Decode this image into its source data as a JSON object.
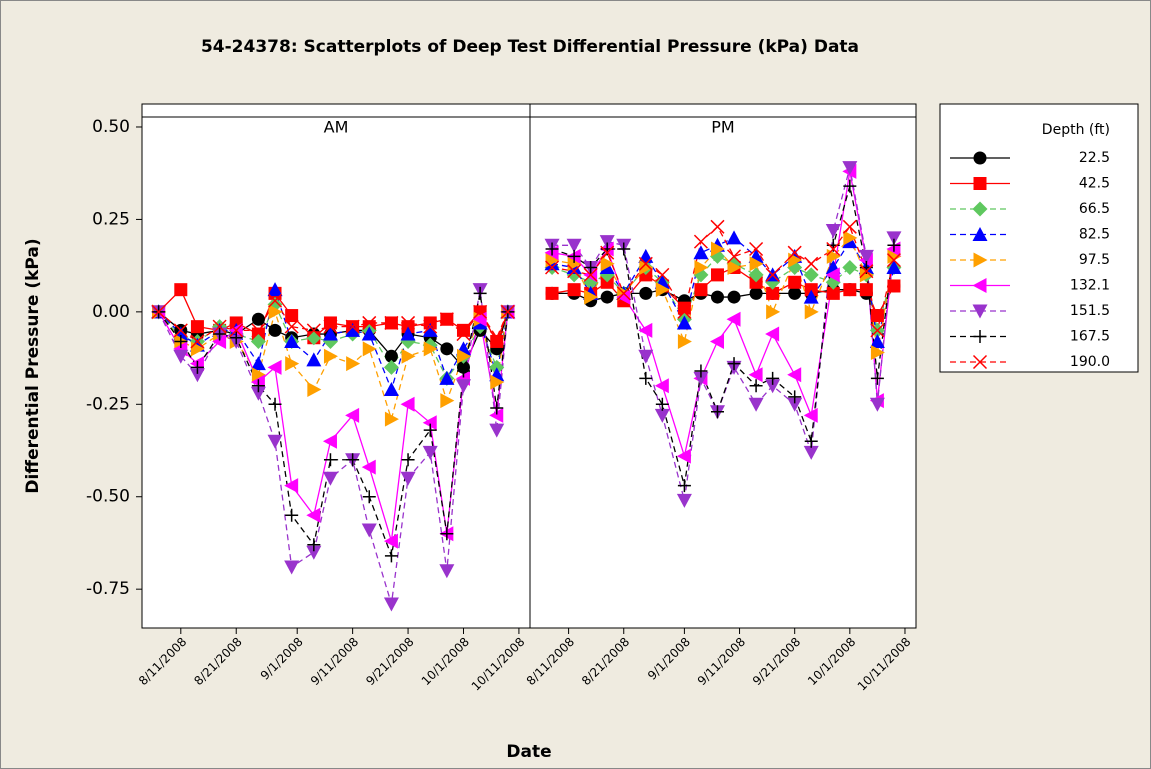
{
  "chart_data": {
    "type": "line",
    "title": "54-24378:  Scatterplots of Deep Test Differential Pressure (kPa) Data",
    "xlabel": "Date",
    "ylabel": "Differential Pressure (kPa)",
    "legend_title": "Depth (ft)",
    "xlim": [
      "2008-08-04",
      "2008-10-13"
    ],
    "xticks": [
      {
        "value": "2008-08-11",
        "label": "8/11/2008"
      },
      {
        "value": "2008-08-21",
        "label": "8/21/2008"
      },
      {
        "value": "2008-09-01",
        "label": "9/1/2008"
      },
      {
        "value": "2008-09-11",
        "label": "9/11/2008"
      },
      {
        "value": "2008-09-21",
        "label": "9/21/2008"
      },
      {
        "value": "2008-10-01",
        "label": "10/1/2008"
      },
      {
        "value": "2008-10-11",
        "label": "10/11/2008"
      }
    ],
    "ylim": [
      -0.855,
      0.527
    ],
    "yticks": [
      {
        "value": 0.5,
        "label": "0.50"
      },
      {
        "value": 0.25,
        "label": "0.25"
      },
      {
        "value": 0,
        "label": "0.00"
      },
      {
        "value": -0.25,
        "label": "-0.25"
      },
      {
        "value": -0.5,
        "label": "-0.50"
      },
      {
        "value": -0.75,
        "label": "-0.75"
      }
    ],
    "series": [
      {
        "name": "22.5",
        "color": "#000000",
        "marker": "circle",
        "dash": "solid"
      },
      {
        "name": "42.5",
        "color": "#ff0000",
        "marker": "square",
        "dash": "solid"
      },
      {
        "name": "66.5",
        "color": "#5fc85f",
        "marker": "diamond",
        "dash": "dashed"
      },
      {
        "name": "82.5",
        "color": "#0000ff",
        "marker": "triangle-up",
        "dash": "dashed"
      },
      {
        "name": "97.5",
        "color": "#ffa000",
        "marker": "triangle-right",
        "dash": "dashed"
      },
      {
        "name": "132.1",
        "color": "#ff00ff",
        "marker": "triangle-left",
        "dash": "solid"
      },
      {
        "name": "151.5",
        "color": "#9933cc",
        "marker": "triangle-down",
        "dash": "dashed"
      },
      {
        "name": "167.5",
        "color": "#000000",
        "marker": "plus",
        "dash": "dashed"
      },
      {
        "name": "190.0",
        "color": "#ff0000",
        "marker": "cross",
        "dash": "dashed"
      }
    ],
    "panels": [
      {
        "title": "AM",
        "x": [
          "2008-08-07",
          "2008-08-11",
          "2008-08-14",
          "2008-08-18",
          "2008-08-21",
          "2008-08-25",
          "2008-08-28",
          "2008-08-31",
          "2008-09-04",
          "2008-09-07",
          "2008-09-11",
          "2008-09-14",
          "2008-09-18",
          "2008-09-21",
          "2008-09-25",
          "2008-09-28",
          "2008-10-01",
          "2008-10-04",
          "2008-10-07",
          "2008-10-09"
        ],
        "values": [
          [
            0,
            -0.05,
            -0.06,
            -0.05,
            -0.06,
            -0.02,
            -0.05,
            -0.07,
            -0.06,
            -0.06,
            -0.05,
            -0.05,
            -0.12,
            -0.06,
            -0.07,
            -0.1,
            -0.15,
            -0.05,
            -0.1,
            0
          ],
          [
            0,
            0.06,
            -0.04,
            -0.05,
            -0.03,
            -0.06,
            0.05,
            -0.01,
            -0.07,
            -0.03,
            -0.04,
            -0.04,
            -0.03,
            -0.04,
            -0.03,
            -0.02,
            -0.05,
            0.0,
            -0.08,
            0
          ],
          [
            0,
            -0.07,
            -0.08,
            -0.04,
            -0.06,
            -0.08,
            0.02,
            -0.08,
            -0.07,
            -0.08,
            -0.06,
            -0.05,
            -0.15,
            -0.08,
            -0.09,
            -0.18,
            -0.12,
            -0.04,
            -0.15,
            0
          ],
          [
            0,
            -0.06,
            -0.09,
            -0.05,
            -0.05,
            -0.14,
            0.06,
            -0.08,
            -0.13,
            -0.06,
            -0.05,
            -0.06,
            -0.21,
            -0.06,
            -0.05,
            -0.18,
            -0.1,
            -0.03,
            -0.17,
            0
          ],
          [
            0,
            -0.08,
            -0.1,
            -0.06,
            -0.08,
            -0.17,
            0.0,
            -0.14,
            -0.21,
            -0.12,
            -0.14,
            -0.1,
            -0.29,
            -0.12,
            -0.1,
            -0.24,
            -0.12,
            -0.02,
            -0.19,
            0
          ],
          [
            0,
            -0.1,
            -0.14,
            -0.08,
            -0.05,
            -0.19,
            -0.15,
            -0.47,
            -0.55,
            -0.35,
            -0.28,
            -0.42,
            -0.62,
            -0.25,
            -0.3,
            -0.6,
            -0.18,
            -0.02,
            -0.28,
            0
          ],
          [
            0,
            -0.12,
            -0.17,
            -0.06,
            -0.08,
            -0.22,
            -0.35,
            -0.69,
            -0.65,
            -0.45,
            -0.4,
            -0.59,
            -0.79,
            -0.45,
            -0.38,
            -0.7,
            -0.2,
            0.06,
            -0.32,
            0
          ],
          [
            0,
            -0.08,
            -0.15,
            -0.06,
            -0.07,
            -0.2,
            -0.25,
            -0.55,
            -0.63,
            -0.4,
            -0.4,
            -0.5,
            -0.66,
            -0.4,
            -0.32,
            -0.6,
            -0.16,
            0.05,
            -0.26,
            0
          ],
          [
            0,
            -0.05,
            -0.08,
            -0.04,
            -0.05,
            -0.05,
            0.03,
            -0.04,
            -0.05,
            -0.04,
            -0.04,
            -0.03,
            -0.03,
            -0.03,
            -0.04,
            -0.02,
            -0.06,
            0.0,
            -0.07,
            0
          ]
        ]
      },
      {
        "title": "PM",
        "x": [
          "2008-08-08",
          "2008-08-12",
          "2008-08-15",
          "2008-08-18",
          "2008-08-21",
          "2008-08-25",
          "2008-08-28",
          "2008-09-01",
          "2008-09-04",
          "2008-09-07",
          "2008-09-10",
          "2008-09-14",
          "2008-09-17",
          "2008-09-21",
          "2008-09-24",
          "2008-09-28",
          "2008-10-01",
          "2008-10-04",
          "2008-10-06",
          "2008-10-09"
        ],
        "values": [
          [
            0.05,
            0.05,
            0.03,
            0.04,
            0.05,
            0.05,
            0.06,
            0.03,
            0.05,
            0.04,
            0.04,
            0.05,
            0.05,
            0.05,
            0.05,
            0.06,
            0.06,
            0.05,
            -0.01,
            0.07
          ],
          [
            0.05,
            0.06,
            0.05,
            0.08,
            0.03,
            0.1,
            0.07,
            0.01,
            0.06,
            0.1,
            0.12,
            0.08,
            0.05,
            0.08,
            0.06,
            0.05,
            0.06,
            0.06,
            -0.01,
            0.07
          ],
          [
            0.12,
            0.1,
            0.08,
            0.1,
            0.05,
            0.12,
            0.08,
            -0.02,
            0.1,
            0.15,
            0.13,
            0.1,
            0.08,
            0.12,
            0.1,
            0.08,
            0.12,
            0.1,
            -0.05,
            0.12
          ],
          [
            0.13,
            0.12,
            0.05,
            0.12,
            0.05,
            0.15,
            0.08,
            -0.03,
            0.16,
            0.18,
            0.2,
            0.15,
            0.1,
            0.15,
            0.04,
            0.12,
            0.19,
            0.12,
            -0.08,
            0.12
          ],
          [
            0.14,
            0.13,
            0.04,
            0.13,
            0.05,
            0.12,
            0.06,
            -0.08,
            0.12,
            0.17,
            0.12,
            0.13,
            0.0,
            0.14,
            0.0,
            0.15,
            0.2,
            0.1,
            -0.11,
            0.15
          ],
          [
            0.16,
            0.15,
            0.1,
            0.17,
            0.04,
            -0.05,
            -0.2,
            -0.39,
            -0.18,
            -0.08,
            -0.02,
            -0.17,
            -0.06,
            -0.17,
            -0.28,
            0.1,
            0.38,
            0.14,
            -0.24,
            0.17
          ],
          [
            0.18,
            0.18,
            0.12,
            0.19,
            0.18,
            -0.12,
            -0.28,
            -0.51,
            -0.18,
            -0.27,
            -0.15,
            -0.25,
            -0.2,
            -0.25,
            -0.38,
            0.22,
            0.39,
            0.15,
            -0.25,
            0.2
          ],
          [
            0.17,
            0.15,
            0.12,
            0.17,
            0.17,
            -0.18,
            -0.25,
            -0.47,
            -0.16,
            -0.27,
            -0.14,
            -0.2,
            -0.18,
            -0.23,
            -0.35,
            0.18,
            0.34,
            0.12,
            -0.18,
            0.18
          ],
          [
            0.12,
            0.11,
            0.1,
            0.16,
            0.05,
            0.13,
            0.1,
            0.0,
            0.19,
            0.23,
            0.15,
            0.17,
            0.1,
            0.16,
            0.13,
            0.17,
            0.23,
            0.11,
            -0.05,
            0.14
          ]
        ]
      }
    ]
  }
}
